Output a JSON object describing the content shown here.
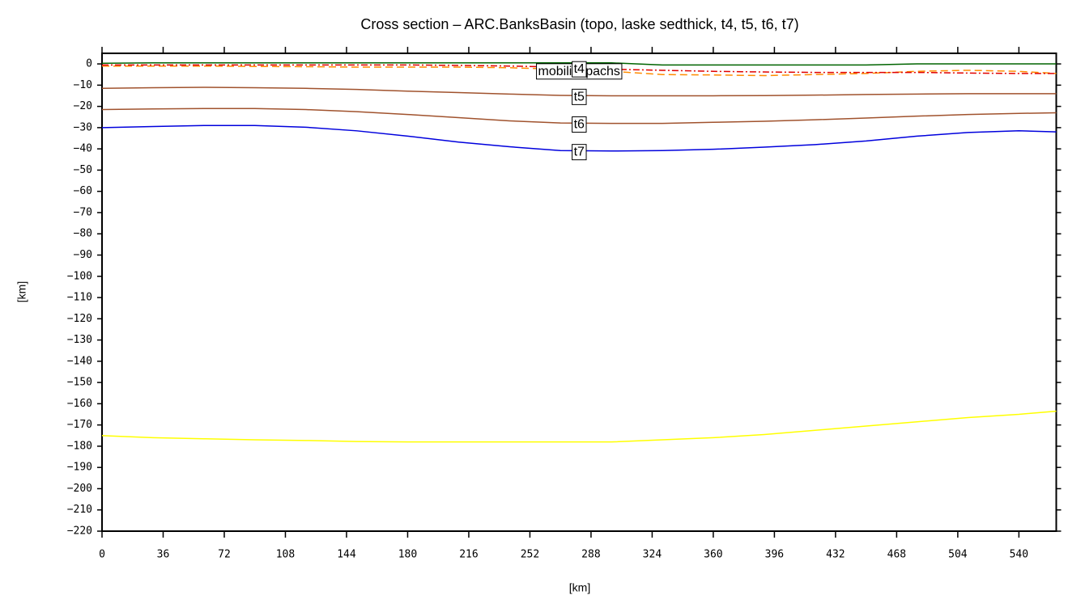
{
  "chart_data": {
    "type": "line",
    "title": "Cross section – ARC.BanksBasin (topo, laske sedthick, t4, t5, t6, t7)",
    "x_label": "[km]",
    "y_label": "[km]",
    "x": [
      0,
      30,
      60,
      90,
      120,
      150,
      180,
      210,
      240,
      270,
      300,
      330,
      360,
      390,
      420,
      450,
      480,
      510,
      540,
      562
    ],
    "series": [
      {
        "color": "#006400",
        "style": "solid",
        "values": [
          0.3,
          0.5,
          0.5,
          0.5,
          0.5,
          0.5,
          0.5,
          0.5,
          0.5,
          0.5,
          0.5,
          -0.5,
          -0.5,
          -0.5,
          -0.5,
          -0.5,
          0,
          0,
          0,
          0
        ]
      },
      {
        "name": "mobilisopachs",
        "color": "#ff8c00",
        "style": "dashed",
        "values": [
          -1,
          -1,
          -1,
          -1.2,
          -1.3,
          -1.5,
          -1.5,
          -1.5,
          -1.8,
          -2.5,
          -3.5,
          -5,
          -5.2,
          -5.5,
          -5,
          -4.5,
          -3.5,
          -3,
          -3.5,
          -4.5
        ]
      },
      {
        "name": "t4",
        "color": "#e00000",
        "style": "dashdot",
        "values": [
          -0.5,
          -0.5,
          -0.5,
          -0.5,
          -0.5,
          -0.5,
          -0.5,
          -0.7,
          -1,
          -1.5,
          -2.5,
          -3,
          -3.5,
          -3.8,
          -4,
          -4,
          -4,
          -4.3,
          -4.5,
          -4.5
        ]
      },
      {
        "name": "t5",
        "color": "#a0522d",
        "style": "solid",
        "values": [
          -11.5,
          -11.2,
          -11,
          -11.2,
          -11.5,
          -12,
          -12.8,
          -13.5,
          -14.2,
          -14.8,
          -15,
          -15,
          -15,
          -14.9,
          -14.7,
          -14.4,
          -14.2,
          -14,
          -14,
          -14
        ]
      },
      {
        "name": "t6",
        "color": "#a0522d",
        "style": "solid",
        "values": [
          -21.5,
          -21.2,
          -21,
          -21,
          -21.5,
          -22.5,
          -23.8,
          -25.3,
          -26.8,
          -27.8,
          -28,
          -28,
          -27.5,
          -27,
          -26.3,
          -25.5,
          -24.6,
          -23.8,
          -23.3,
          -23
        ]
      },
      {
        "name": "t7",
        "color": "#0000dd",
        "style": "solid",
        "values": [
          -30,
          -29.5,
          -29,
          -29,
          -29.8,
          -31.5,
          -34,
          -36.8,
          -39,
          -40.8,
          -41,
          -40.8,
          -40.2,
          -39.2,
          -38,
          -36.3,
          -34,
          -32.3,
          -31.5,
          -32
        ]
      },
      {
        "color": "#ffff00",
        "style": "solid",
        "values": [
          -175,
          -176,
          -176.5,
          -177,
          -177.3,
          -177.8,
          -178,
          -178,
          -178,
          -178,
          -178,
          -177,
          -176,
          -174.5,
          -172.5,
          -170.5,
          -168.5,
          -166.5,
          -165,
          -163.5
        ]
      }
    ],
    "xlim": [
      0,
      562
    ],
    "ylim": [
      -220,
      5
    ],
    "xticks": [
      0,
      36,
      72,
      108,
      144,
      180,
      216,
      252,
      288,
      324,
      360,
      396,
      432,
      468,
      504,
      540
    ],
    "yticks": [
      0,
      {
        "value": -10,
        "label": "−10"
      },
      {
        "value": -20,
        "label": "−20"
      },
      {
        "value": -30,
        "label": "−30"
      },
      {
        "value": -40,
        "label": "−40"
      },
      {
        "value": -50,
        "label": "−50"
      },
      {
        "value": -60,
        "label": "−60"
      },
      {
        "value": -70,
        "label": "−70"
      },
      {
        "value": -80,
        "label": "−80"
      },
      {
        "value": -90,
        "label": "−90"
      },
      {
        "value": -100,
        "label": "−100"
      },
      {
        "value": -110,
        "label": "−110"
      },
      {
        "value": -120,
        "label": "−120"
      },
      {
        "value": -130,
        "label": "−130"
      },
      {
        "value": -140,
        "label": "−140"
      },
      {
        "value": -150,
        "label": "−150"
      },
      {
        "value": -160,
        "label": "−160"
      },
      {
        "value": -170,
        "label": "−170"
      },
      {
        "value": -180,
        "label": "−180"
      },
      {
        "value": -190,
        "label": "−190"
      },
      {
        "value": -200,
        "label": "−200"
      },
      {
        "value": -210,
        "label": "−210"
      },
      {
        "value": -220,
        "label": "−220"
      }
    ],
    "grid": false
  }
}
